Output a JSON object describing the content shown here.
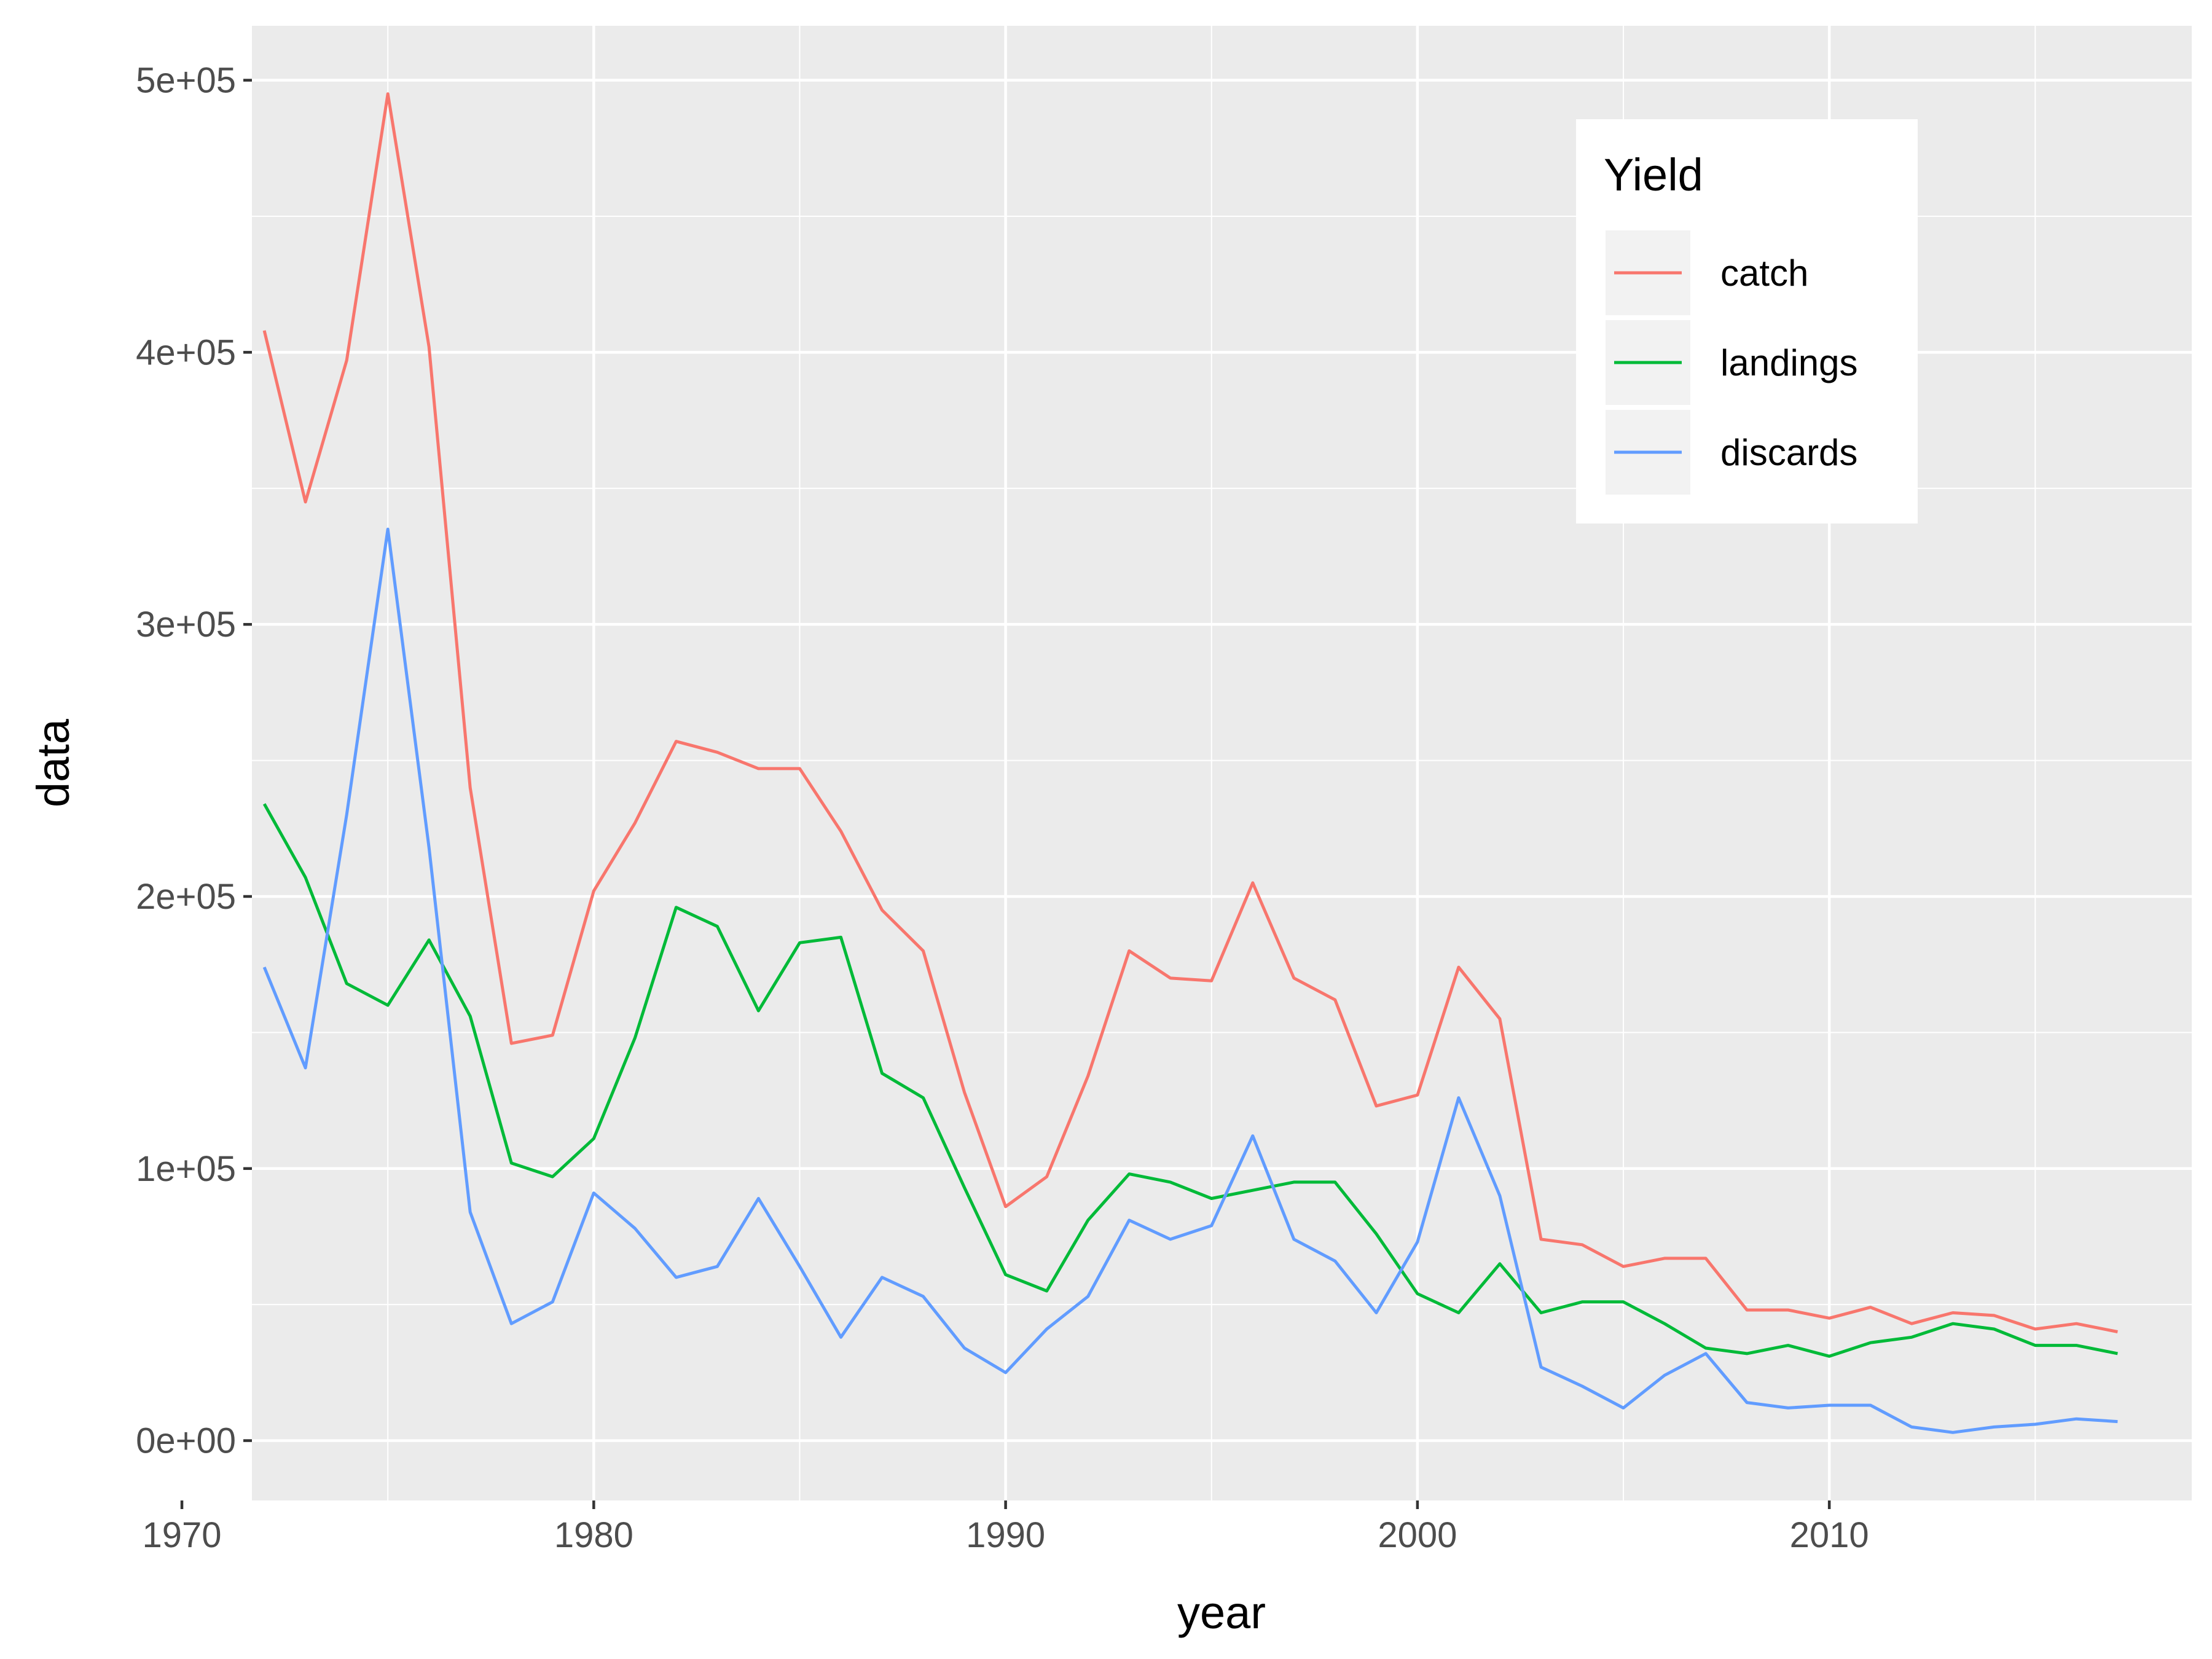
{
  "chart_data": {
    "type": "line",
    "xlabel": "year",
    "ylabel": "data",
    "xlim": [
      1971.7,
      2018.8
    ],
    "ylim": [
      -22000,
      520000
    ],
    "x_ticks": [
      1970,
      1980,
      1990,
      2000,
      2010
    ],
    "x_tick_labels": [
      "1970",
      "1980",
      "1990",
      "2000",
      "2010"
    ],
    "y_ticks": [
      0,
      100000,
      200000,
      300000,
      400000,
      500000
    ],
    "y_tick_labels": [
      "0e+00",
      "1e+05",
      "2e+05",
      "3e+05",
      "4e+05",
      "5e+05"
    ],
    "grid": true,
    "legend": {
      "title": "Yield",
      "placement": "top-right"
    },
    "x": [
      1972,
      1973,
      1974,
      1975,
      1976,
      1977,
      1978,
      1979,
      1980,
      1981,
      1982,
      1983,
      1984,
      1985,
      1986,
      1987,
      1988,
      1989,
      1990,
      1991,
      1992,
      1993,
      1994,
      1995,
      1996,
      1997,
      1998,
      1999,
      2000,
      2001,
      2002,
      2003,
      2004,
      2005,
      2006,
      2007,
      2008,
      2009,
      2010,
      2011,
      2012,
      2013,
      2014,
      2015,
      2016,
      2017
    ],
    "series": [
      {
        "name": "catch",
        "color": "#F8766D",
        "values": [
          408000,
          345000,
          397000,
          495000,
          402000,
          240000,
          146000,
          149000,
          202000,
          227000,
          257000,
          253000,
          247000,
          247000,
          224000,
          195000,
          180000,
          128000,
          86000,
          97000,
          134000,
          180000,
          170000,
          169000,
          205000,
          170000,
          162000,
          123000,
          127000,
          174000,
          155000,
          74000,
          72000,
          64000,
          67000,
          67000,
          48000,
          48000,
          45000,
          49000,
          43000,
          47000,
          46000,
          41000,
          43000,
          40000
        ]
      },
      {
        "name": "landings",
        "color": "#00BA38",
        "values": [
          234000,
          207000,
          168000,
          160000,
          184000,
          156000,
          102000,
          97000,
          111000,
          148000,
          196000,
          189000,
          158000,
          183000,
          185000,
          135000,
          126000,
          93000,
          61000,
          55000,
          81000,
          98000,
          95000,
          89000,
          92000,
          95000,
          95000,
          76000,
          54000,
          47000,
          65000,
          47000,
          51000,
          51000,
          43000,
          34000,
          32000,
          35000,
          31000,
          36000,
          38000,
          43000,
          41000,
          35000,
          35000,
          32000
        ]
      },
      {
        "name": "discards",
        "color": "#619CFF",
        "values": [
          174000,
          137000,
          230000,
          335000,
          218000,
          84000,
          43000,
          51000,
          91000,
          78000,
          60000,
          64000,
          89000,
          64000,
          38000,
          60000,
          53000,
          34000,
          25000,
          41000,
          53000,
          81000,
          74000,
          79000,
          112000,
          74000,
          66000,
          47000,
          73000,
          126000,
          90000,
          27000,
          20000,
          12000,
          24000,
          32000,
          14000,
          12000,
          13000,
          13000,
          5000,
          3000,
          5000,
          6000,
          8000,
          7000
        ]
      }
    ]
  }
}
